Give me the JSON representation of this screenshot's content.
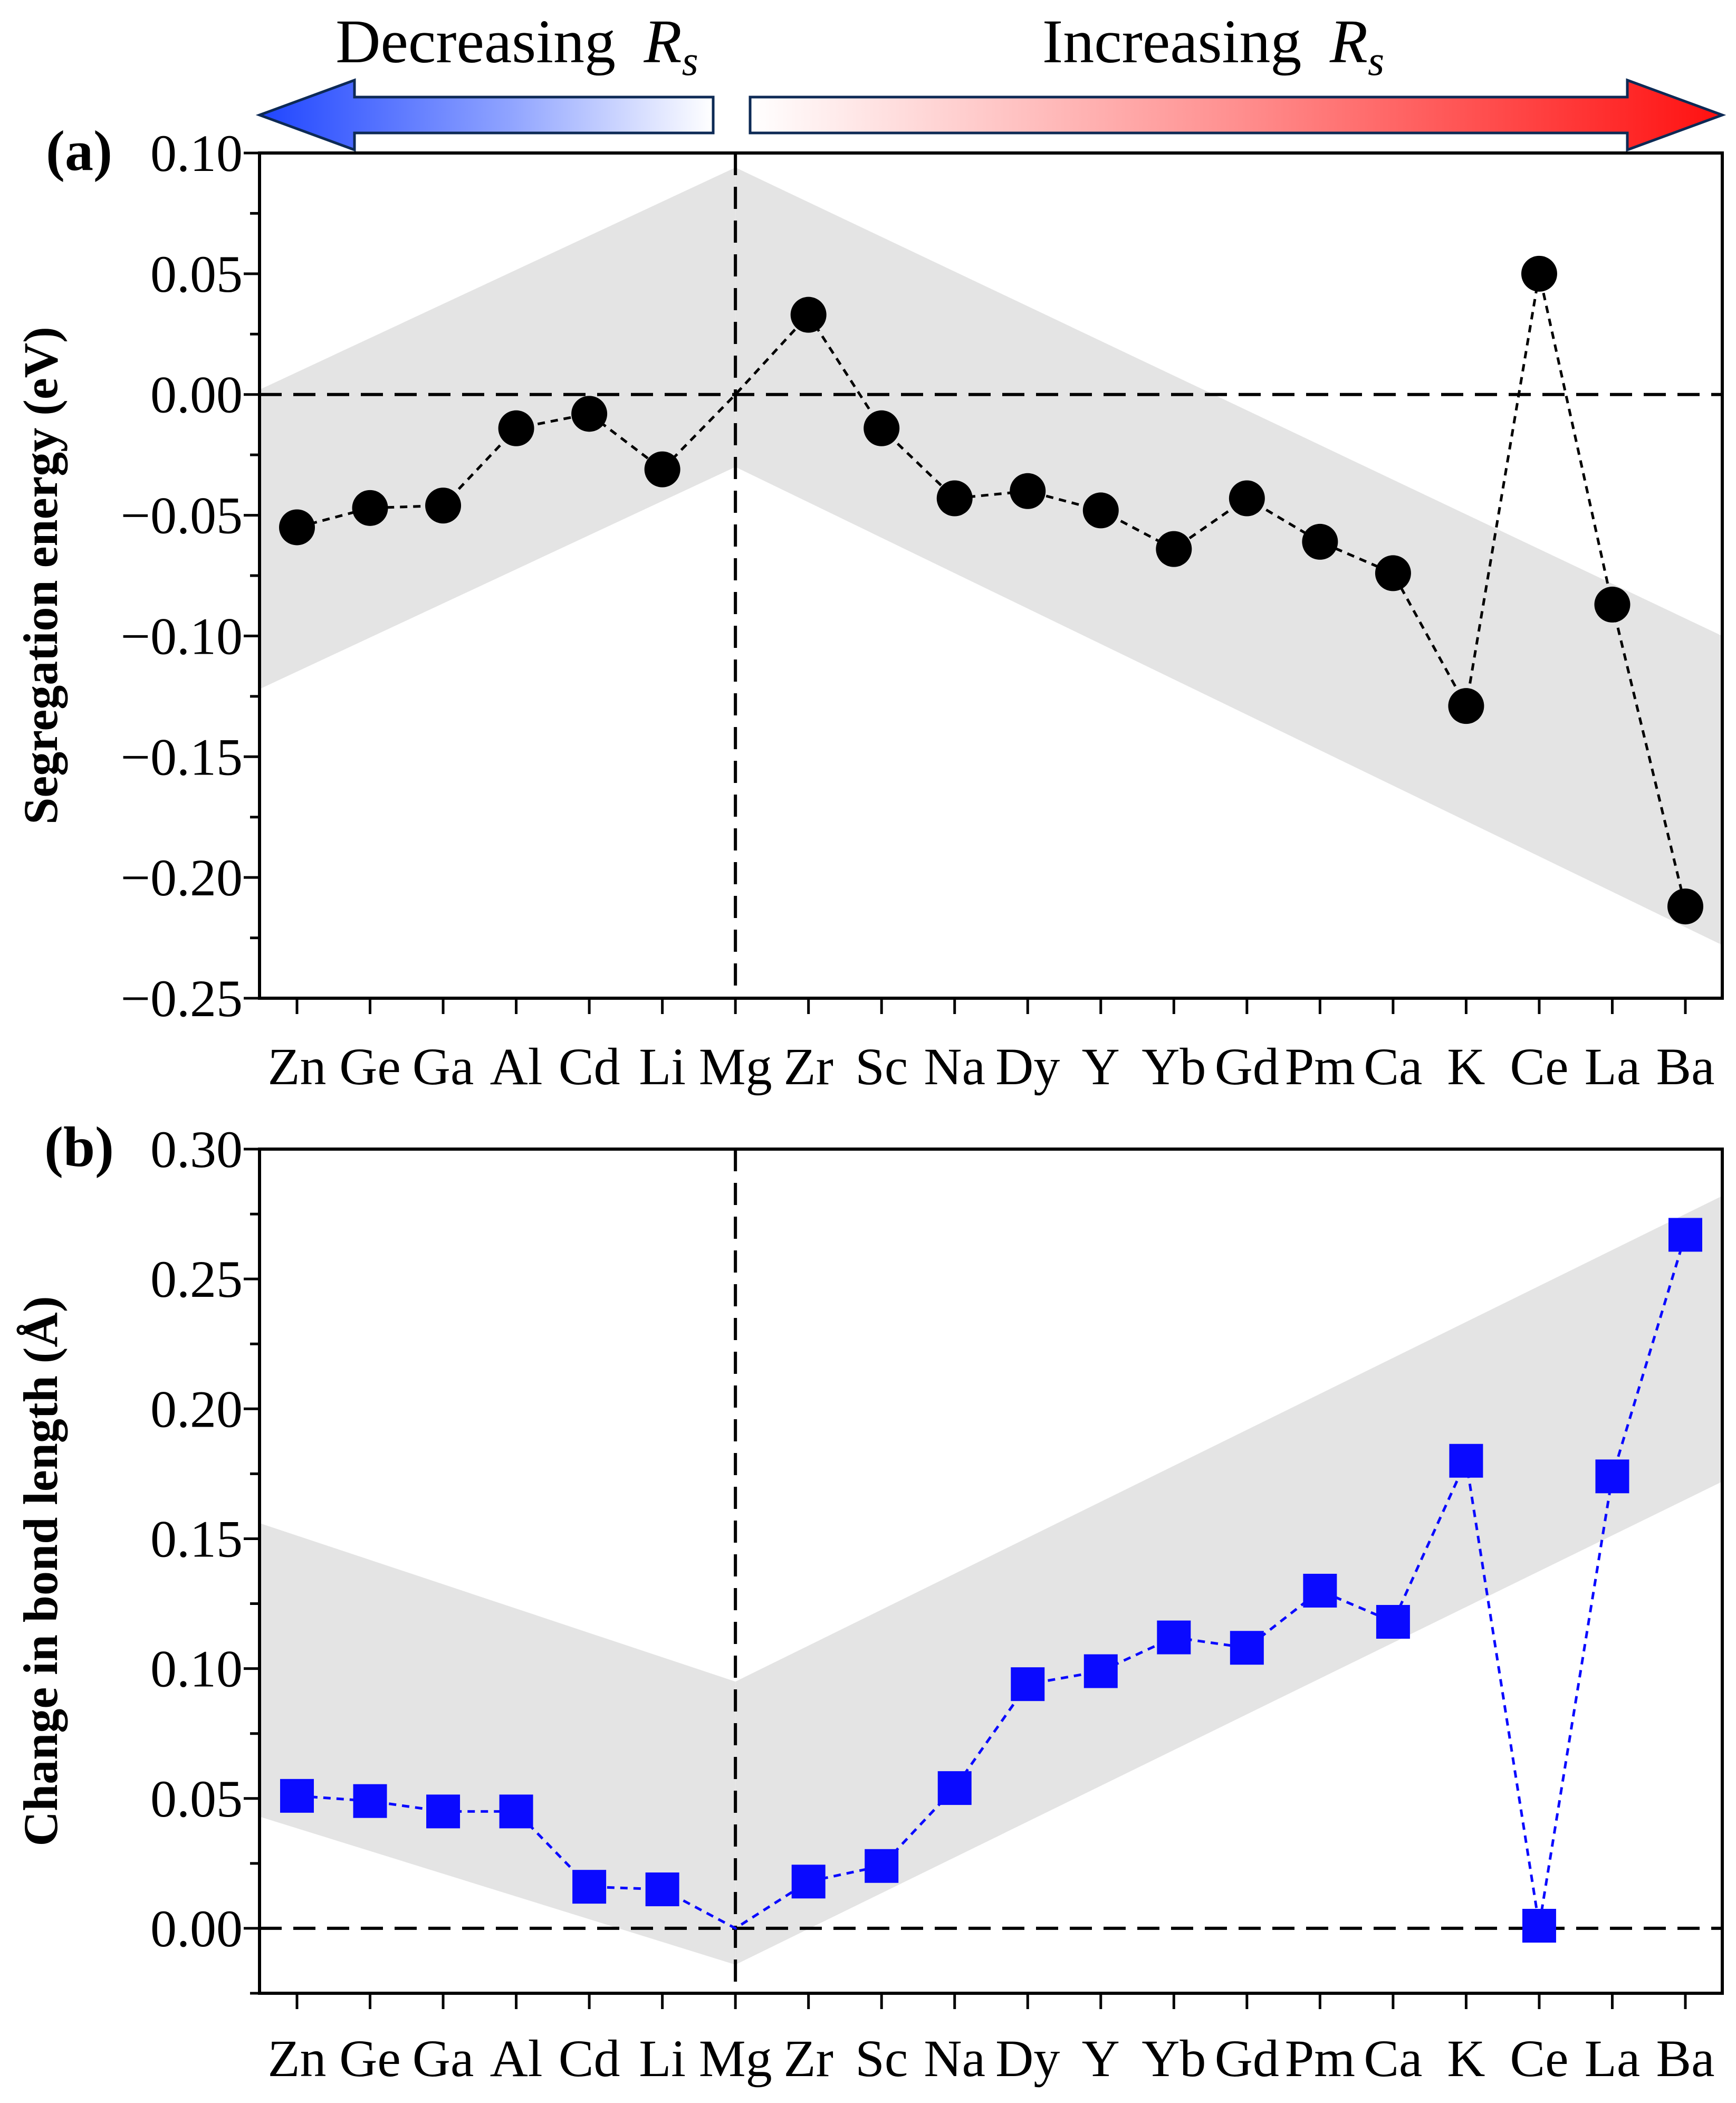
{
  "header": {
    "decreasing_label": "Decreasing",
    "increasing_label": "Increasing",
    "symbol": "R",
    "subscript": "s"
  },
  "colors": {
    "gray_band": "#e4e4e4",
    "series_a": "#000000",
    "series_b": "#0a0aff",
    "arrow_blue": "#1f45ff",
    "arrow_red": "#ff1010",
    "frame": "#000000"
  },
  "chart_data": [
    {
      "panel": "(a)",
      "type": "line",
      "marker": "circle",
      "line_style": "dotted",
      "categories": [
        "Zn",
        "Ge",
        "Ga",
        "Al",
        "Cd",
        "Li",
        "Mg",
        "Zr",
        "Sc",
        "Na",
        "Dy",
        "Y",
        "Yb",
        "Gd",
        "Pm",
        "Ca",
        "K",
        "Ce",
        "La",
        "Ba"
      ],
      "values": [
        -0.055,
        -0.047,
        -0.046,
        -0.014,
        -0.008,
        -0.031,
        0.0,
        0.033,
        -0.014,
        -0.043,
        -0.04,
        -0.048,
        -0.064,
        -0.043,
        -0.061,
        -0.074,
        -0.129,
        0.05,
        -0.087,
        -0.212
      ],
      "ylabel": "Segregation energy (eV)",
      "ylim": [
        -0.25,
        0.1
      ],
      "yticks": [
        "0.10",
        "0.05",
        "0.00",
        "−0.05",
        "−0.10",
        "−0.15",
        "−0.20",
        "−0.25"
      ],
      "ytick_values": [
        0.1,
        0.05,
        0.0,
        -0.05,
        -0.1,
        -0.15,
        -0.2,
        -0.25
      ],
      "reference_hline": 0.0,
      "reference_vline_category": "Mg",
      "band": {
        "left_start": [
          -0.122,
          0.002
        ],
        "left_end": [
          -0.03,
          0.094
        ],
        "right_start": [
          -0.03,
          0.094
        ],
        "right_end": [
          -0.228,
          -0.1
        ]
      }
    },
    {
      "panel": "(b)",
      "type": "line",
      "marker": "square",
      "line_style": "dotted",
      "categories": [
        "Zn",
        "Ge",
        "Ga",
        "Al",
        "Cd",
        "Li",
        "Mg",
        "Zr",
        "Sc",
        "Na",
        "Dy",
        "Y",
        "Yb",
        "Gd",
        "Pm",
        "Ca",
        "K",
        "Ce",
        "La",
        "Ba"
      ],
      "values": [
        0.051,
        0.049,
        0.045,
        0.045,
        0.016,
        0.015,
        0.0,
        0.018,
        0.024,
        0.054,
        0.094,
        0.099,
        0.112,
        0.108,
        0.13,
        0.118,
        0.18,
        0.001,
        0.174,
        0.267
      ],
      "ylabel": "Change in bond length (Å)",
      "ylim": [
        -0.025,
        0.3
      ],
      "yticks": [
        "0.30",
        "0.25",
        "0.20",
        "0.15",
        "0.10",
        "0.05",
        "0.00"
      ],
      "ytick_values": [
        0.3,
        0.25,
        0.2,
        0.15,
        0.1,
        0.05,
        0.0
      ],
      "reference_hline": 0.0,
      "reference_vline_category": "Mg",
      "band": {
        "left_start": [
          0.043,
          0.156
        ],
        "left_end": [
          -0.014,
          0.095
        ],
        "right_start": [
          -0.014,
          0.095
        ],
        "right_end": [
          0.172,
          0.282
        ]
      }
    }
  ]
}
